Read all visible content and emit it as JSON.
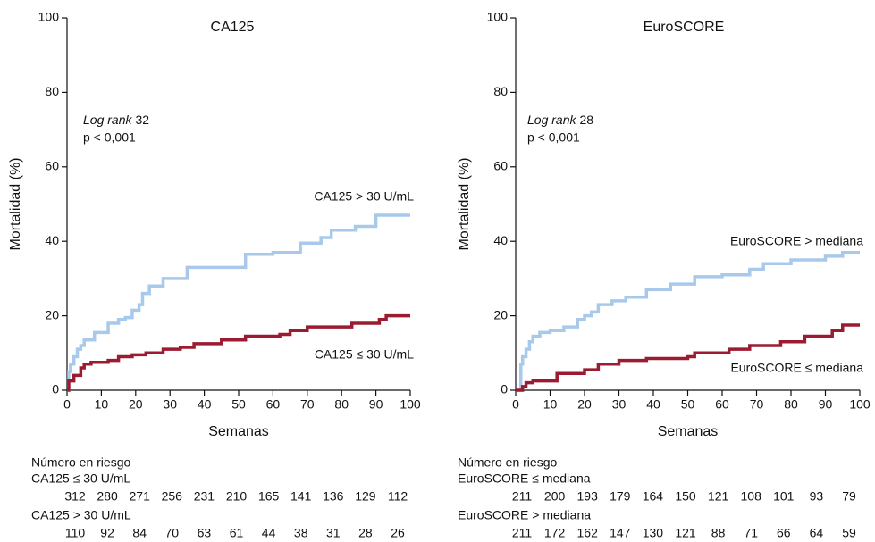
{
  "chart_data": [
    {
      "type": "step",
      "title": "CA125",
      "xlabel": "Semanas",
      "ylabel": "Mortalidad (%)",
      "xlim": [
        0,
        100
      ],
      "ylim": [
        0,
        100
      ],
      "xticks": [
        0,
        10,
        20,
        30,
        40,
        50,
        60,
        70,
        80,
        90,
        100
      ],
      "yticks": [
        0,
        20,
        40,
        60,
        80,
        100
      ],
      "log_rank_label": "Log rank",
      "log_rank": 32,
      "p_value": "p < 0,001",
      "series": [
        {
          "name": "CA125 > 30 U/mL",
          "color": "#a9c9ea",
          "x": [
            0,
            0.5,
            1,
            2,
            3,
            4,
            5,
            8,
            12,
            15,
            17,
            19,
            21,
            22,
            24,
            28,
            35,
            52,
            60,
            68,
            74,
            77,
            84,
            90,
            100
          ],
          "values": [
            0,
            5,
            7,
            9,
            11,
            12,
            13.5,
            15.5,
            18,
            19,
            19.5,
            21.5,
            23,
            26,
            28,
            30,
            33,
            36.5,
            37,
            39.5,
            41,
            43,
            44,
            47,
            47
          ]
        },
        {
          "name": "CA125 ≤ 30 U/mL",
          "color": "#9b1c31",
          "x": [
            0,
            0.5,
            2,
            4,
            5,
            7,
            12,
            15,
            19,
            23,
            28,
            33,
            37,
            45,
            52,
            62,
            65,
            70,
            83,
            91,
            93,
            100
          ],
          "values": [
            0,
            2.5,
            4,
            6,
            7,
            7.5,
            8,
            9,
            9.5,
            10,
            11,
            11.5,
            12.5,
            13.5,
            14.5,
            15,
            16,
            17,
            18,
            19,
            20,
            20
          ]
        }
      ],
      "risk_table": {
        "title": "Número en riesgo",
        "groups": [
          {
            "label": "CA125 ≤ 30 U/mL",
            "values": [
              312,
              280,
              271,
              256,
              231,
              210,
              165,
              141,
              136,
              129,
              112
            ]
          },
          {
            "label": "CA125 > 30 U/mL",
            "values": [
              110,
              92,
              84,
              70,
              63,
              61,
              44,
              38,
              31,
              28,
              26
            ]
          }
        ]
      }
    },
    {
      "type": "step",
      "title": "EuroSCORE",
      "xlabel": "Semanas",
      "ylabel": "Mortalidad (%)",
      "xlim": [
        0,
        100
      ],
      "ylim": [
        0,
        100
      ],
      "xticks": [
        0,
        10,
        20,
        30,
        40,
        50,
        60,
        70,
        80,
        90,
        100
      ],
      "yticks": [
        0,
        20,
        40,
        60,
        80,
        100
      ],
      "log_rank_label": "Log rank",
      "log_rank": 28,
      "p_value": "p < 0,001",
      "series": [
        {
          "name": "EuroSCORE > mediana",
          "color": "#a9c9ea",
          "x": [
            0,
            1.5,
            2,
            3,
            4,
            5,
            7,
            10,
            14,
            18,
            20,
            22,
            24,
            28,
            32,
            38,
            45,
            52,
            60,
            68,
            72,
            80,
            90,
            95,
            100
          ],
          "values": [
            0,
            7,
            9,
            11,
            13,
            14.5,
            15.5,
            16,
            17,
            19,
            20,
            21,
            23,
            24,
            25,
            27,
            28.5,
            30.5,
            31,
            32.5,
            34,
            35,
            36,
            37,
            37
          ]
        },
        {
          "name": "EuroSCORE ≤ mediana",
          "color": "#9b1c31",
          "x": [
            0,
            2,
            3,
            5,
            12,
            20,
            24,
            30,
            38,
            50,
            52,
            62,
            68,
            77,
            84,
            92,
            95,
            100
          ],
          "values": [
            0,
            1,
            2,
            2.5,
            4.5,
            5.5,
            7,
            8,
            8.5,
            9,
            10,
            11,
            12,
            13,
            14.5,
            16,
            17.5,
            17.5
          ]
        }
      ],
      "risk_table": {
        "title": "Número en riesgo",
        "groups": [
          {
            "label": "EuroSCORE ≤ mediana",
            "values": [
              211,
              200,
              193,
              179,
              164,
              150,
              121,
              108,
              101,
              93,
              79
            ]
          },
          {
            "label": "EuroSCORE > mediana",
            "values": [
              211,
              172,
              162,
              147,
              130,
              121,
              88,
              71,
              66,
              64,
              59
            ]
          }
        ]
      }
    }
  ]
}
